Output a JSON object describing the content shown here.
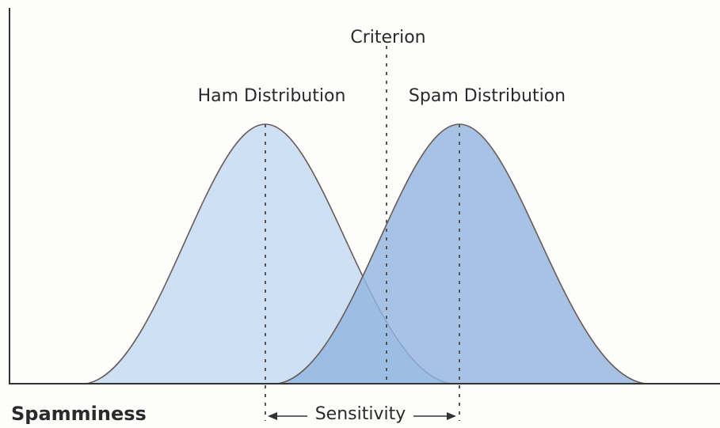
{
  "labels": {
    "criterion": "Criterion",
    "ham": "Ham Distribution",
    "spam": "Spam Distribution",
    "axis": "Spamminess",
    "sensitivity": "Sensitivity"
  }
}
